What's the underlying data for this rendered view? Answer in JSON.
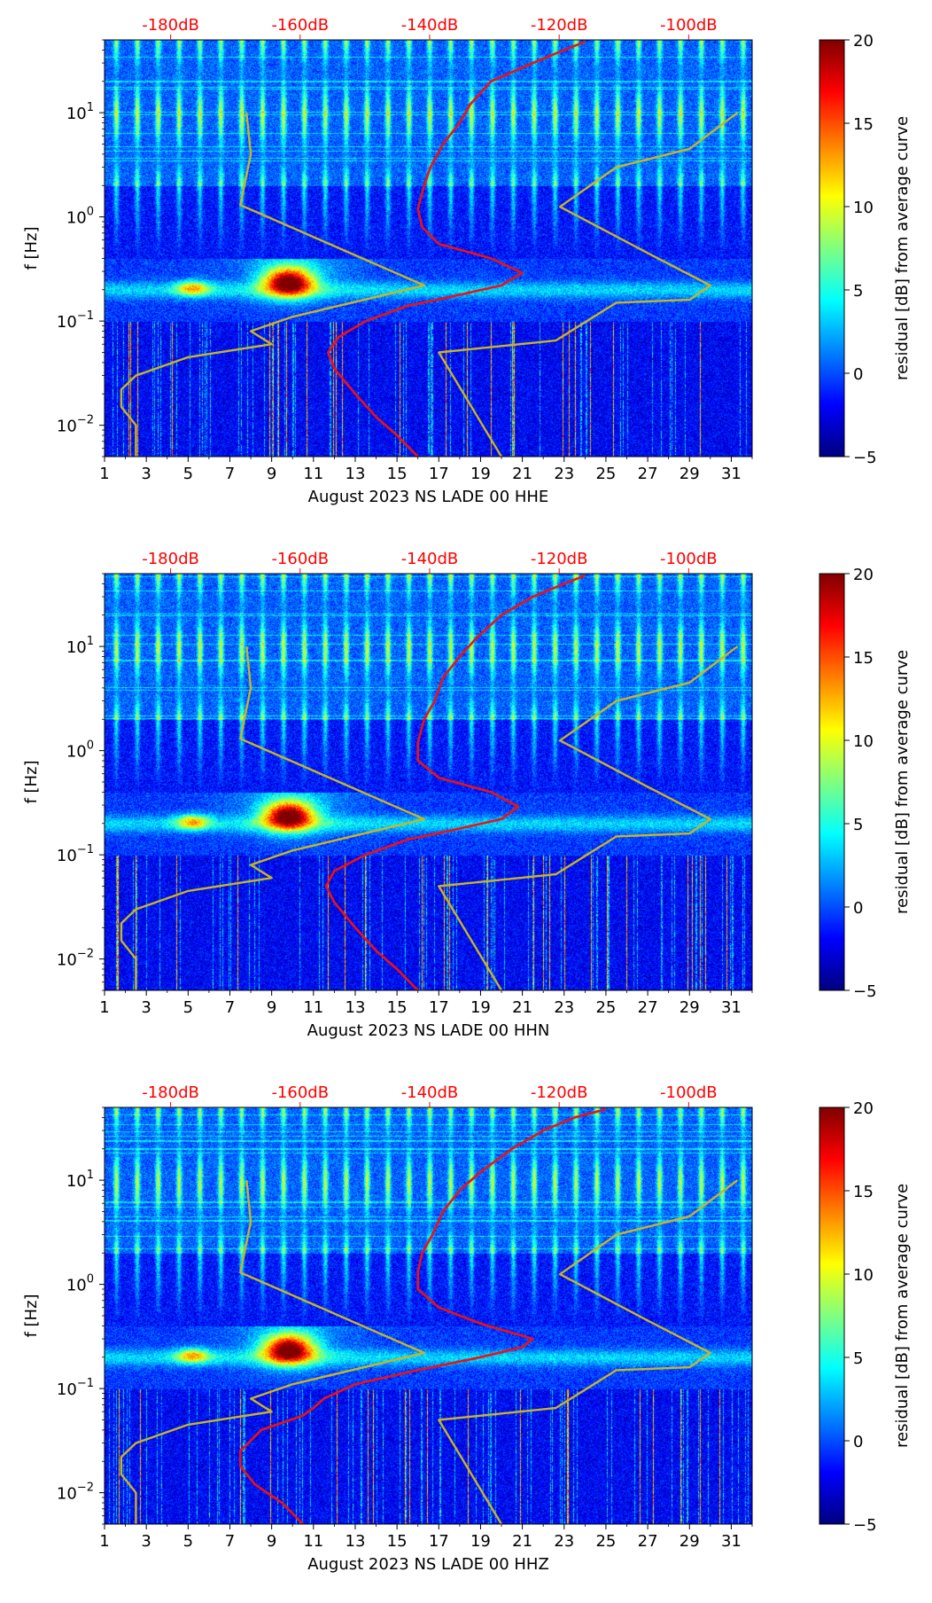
{
  "chart_data": [
    {
      "type": "heatmap",
      "title": "",
      "xlabel": "August 2023 NS LADE 00 HHE",
      "ylabel": "f [Hz]",
      "x_ticks": [
        "1",
        "3",
        "5",
        "7",
        "9",
        "11",
        "13",
        "15",
        "17",
        "19",
        "21",
        "23",
        "25",
        "27",
        "29",
        "31"
      ],
      "x_range": [
        1,
        32
      ],
      "y_scale": "log",
      "y_range": [
        0.005,
        50
      ],
      "y_ticks": [
        {
          "value": 0.01,
          "base": "10",
          "exp": "−2"
        },
        {
          "value": 0.1,
          "base": "10",
          "exp": "−1"
        },
        {
          "value": 1,
          "base": "10",
          "exp": "0"
        },
        {
          "value": 10,
          "base": "10",
          "exp": "1"
        }
      ],
      "top_axis_labels": [
        "-180dB",
        "-160dB",
        "-140dB",
        "-120dB",
        "-100dB"
      ],
      "top_axis_color": "#ff0000",
      "colorbar": {
        "label": "residual [dB] from average curve",
        "range": [
          -5,
          20
        ],
        "ticks": [
          "−5",
          "0",
          "5",
          "10",
          "15",
          "20"
        ],
        "colormap": "jet"
      },
      "series": [
        {
          "color": "#ee1111",
          "points": [
            [
              16.0,
              0.005
            ],
            [
              15.0,
              0.008
            ],
            [
              14.0,
              0.012
            ],
            [
              13.0,
              0.02
            ],
            [
              12.0,
              0.035
            ],
            [
              11.7,
              0.05
            ],
            [
              12.2,
              0.07
            ],
            [
              13.5,
              0.1
            ],
            [
              15.5,
              0.14
            ],
            [
              17.5,
              0.17
            ],
            [
              20.0,
              0.22
            ],
            [
              21.0,
              0.29
            ],
            [
              19.5,
              0.4
            ],
            [
              17.0,
              0.55
            ],
            [
              16.2,
              0.8
            ],
            [
              16.0,
              1.2
            ],
            [
              16.3,
              2.0
            ],
            [
              16.6,
              3.0
            ],
            [
              17.2,
              5.0
            ],
            [
              18.0,
              8.0
            ],
            [
              18.5,
              12.0
            ],
            [
              19.5,
              20.0
            ],
            [
              21.5,
              30.0
            ],
            [
              23.0,
              40.0
            ],
            [
              24.0,
              48.0
            ]
          ]
        },
        {
          "color": "#c8b428",
          "points": [
            [
              2.5,
              0.005
            ],
            [
              2.5,
              0.01
            ],
            [
              1.8,
              0.015
            ],
            [
              1.8,
              0.022
            ],
            [
              2.5,
              0.03
            ],
            [
              5.0,
              0.045
            ],
            [
              9.0,
              0.06
            ],
            [
              8.0,
              0.08
            ],
            [
              10.0,
              0.11
            ],
            [
              16.3,
              0.22
            ],
            [
              14.0,
              0.35
            ],
            [
              7.5,
              1.3
            ],
            [
              8.0,
              4.0
            ],
            [
              7.8,
              10.0
            ]
          ]
        },
        {
          "color": "#c8b428",
          "points": [
            [
              20.0,
              0.005
            ],
            [
              17.0,
              0.05
            ],
            [
              22.6,
              0.065
            ],
            [
              25.5,
              0.15
            ],
            [
              29.0,
              0.16
            ],
            [
              30.0,
              0.22
            ],
            [
              27.0,
              0.45
            ],
            [
              22.8,
              1.25
            ],
            [
              25.5,
              3.0
            ],
            [
              29.0,
              4.5
            ],
            [
              31.3,
              10.0
            ]
          ]
        }
      ]
    },
    {
      "type": "heatmap",
      "title": "",
      "xlabel": "August 2023 NS LADE 00 HHN",
      "ylabel": "f [Hz]",
      "x_ticks": [
        "1",
        "3",
        "5",
        "7",
        "9",
        "11",
        "13",
        "15",
        "17",
        "19",
        "21",
        "23",
        "25",
        "27",
        "29",
        "31"
      ],
      "x_range": [
        1,
        32
      ],
      "y_scale": "log",
      "y_range": [
        0.005,
        50
      ],
      "y_ticks": [
        {
          "value": 0.01,
          "base": "10",
          "exp": "−2"
        },
        {
          "value": 0.1,
          "base": "10",
          "exp": "−1"
        },
        {
          "value": 1,
          "base": "10",
          "exp": "0"
        },
        {
          "value": 10,
          "base": "10",
          "exp": "1"
        }
      ],
      "top_axis_labels": [
        "-180dB",
        "-160dB",
        "-140dB",
        "-120dB",
        "-100dB"
      ],
      "top_axis_color": "#ff0000",
      "colorbar": {
        "label": "residual [dB] from average curve",
        "range": [
          -5,
          20
        ],
        "ticks": [
          "−5",
          "0",
          "5",
          "10",
          "15",
          "20"
        ],
        "colormap": "jet"
      },
      "series": [
        {
          "color": "#ee1111",
          "points": [
            [
              16.0,
              0.005
            ],
            [
              15.0,
              0.008
            ],
            [
              14.0,
              0.012
            ],
            [
              13.0,
              0.02
            ],
            [
              12.0,
              0.035
            ],
            [
              11.6,
              0.05
            ],
            [
              12.0,
              0.07
            ],
            [
              13.5,
              0.1
            ],
            [
              15.5,
              0.14
            ],
            [
              17.5,
              0.17
            ],
            [
              20.0,
              0.22
            ],
            [
              20.8,
              0.29
            ],
            [
              19.5,
              0.4
            ],
            [
              17.0,
              0.55
            ],
            [
              16.0,
              0.8
            ],
            [
              16.0,
              1.2
            ],
            [
              16.3,
              2.0
            ],
            [
              16.8,
              3.0
            ],
            [
              17.2,
              5.0
            ],
            [
              18.0,
              8.0
            ],
            [
              18.8,
              12.0
            ],
            [
              20.0,
              20.0
            ],
            [
              21.5,
              30.0
            ],
            [
              23.0,
              40.0
            ],
            [
              24.0,
              48.0
            ]
          ]
        },
        {
          "color": "#c8b428",
          "points": [
            [
              2.5,
              0.005
            ],
            [
              2.5,
              0.01
            ],
            [
              1.8,
              0.015
            ],
            [
              1.8,
              0.022
            ],
            [
              2.5,
              0.03
            ],
            [
              5.0,
              0.045
            ],
            [
              9.0,
              0.06
            ],
            [
              8.0,
              0.08
            ],
            [
              10.0,
              0.11
            ],
            [
              16.3,
              0.22
            ],
            [
              14.0,
              0.35
            ],
            [
              7.5,
              1.3
            ],
            [
              8.0,
              4.0
            ],
            [
              7.8,
              10.0
            ]
          ]
        },
        {
          "color": "#c8b428",
          "points": [
            [
              20.0,
              0.005
            ],
            [
              17.0,
              0.05
            ],
            [
              22.6,
              0.065
            ],
            [
              25.5,
              0.15
            ],
            [
              29.0,
              0.16
            ],
            [
              30.0,
              0.22
            ],
            [
              27.0,
              0.45
            ],
            [
              22.8,
              1.25
            ],
            [
              25.5,
              3.0
            ],
            [
              29.0,
              4.5
            ],
            [
              31.3,
              10.0
            ]
          ]
        }
      ]
    },
    {
      "type": "heatmap",
      "title": "",
      "xlabel": "August 2023 NS LADE 00 HHZ",
      "ylabel": "f [Hz]",
      "x_ticks": [
        "1",
        "3",
        "5",
        "7",
        "9",
        "11",
        "13",
        "15",
        "17",
        "19",
        "21",
        "23",
        "25",
        "27",
        "29",
        "31"
      ],
      "x_range": [
        1,
        32
      ],
      "y_scale": "log",
      "y_range": [
        0.005,
        50
      ],
      "y_ticks": [
        {
          "value": 0.01,
          "base": "10",
          "exp": "−2"
        },
        {
          "value": 0.1,
          "base": "10",
          "exp": "−1"
        },
        {
          "value": 1,
          "base": "10",
          "exp": "0"
        },
        {
          "value": 10,
          "base": "10",
          "exp": "1"
        }
      ],
      "top_axis_labels": [
        "-180dB",
        "-160dB",
        "-140dB",
        "-120dB",
        "-100dB"
      ],
      "top_axis_color": "#ff0000",
      "colorbar": {
        "label": "residual [dB] from average curve",
        "range": [
          -5,
          20
        ],
        "ticks": [
          "−5",
          "0",
          "5",
          "10",
          "15",
          "20"
        ],
        "colormap": "jet"
      },
      "series": [
        {
          "color": "#ee1111",
          "points": [
            [
              10.5,
              0.005
            ],
            [
              9.5,
              0.008
            ],
            [
              8.2,
              0.012
            ],
            [
              7.5,
              0.018
            ],
            [
              7.5,
              0.025
            ],
            [
              8.5,
              0.04
            ],
            [
              10.5,
              0.055
            ],
            [
              11.0,
              0.065
            ],
            [
              11.5,
              0.08
            ],
            [
              13.0,
              0.11
            ],
            [
              16.0,
              0.15
            ],
            [
              19.0,
              0.2
            ],
            [
              21.0,
              0.25
            ],
            [
              21.5,
              0.3
            ],
            [
              19.0,
              0.42
            ],
            [
              17.0,
              0.6
            ],
            [
              16.0,
              0.9
            ],
            [
              16.0,
              1.3
            ],
            [
              16.2,
              2.0
            ],
            [
              16.7,
              3.0
            ],
            [
              17.2,
              5.0
            ],
            [
              18.0,
              8.0
            ],
            [
              19.0,
              12.0
            ],
            [
              20.5,
              20.0
            ],
            [
              22.0,
              30.0
            ],
            [
              23.5,
              40.0
            ],
            [
              25.0,
              48.0
            ]
          ]
        },
        {
          "color": "#c8b428",
          "points": [
            [
              2.5,
              0.005
            ],
            [
              2.5,
              0.01
            ],
            [
              1.8,
              0.015
            ],
            [
              1.8,
              0.022
            ],
            [
              2.5,
              0.03
            ],
            [
              5.0,
              0.045
            ],
            [
              9.0,
              0.06
            ],
            [
              8.0,
              0.08
            ],
            [
              10.0,
              0.11
            ],
            [
              16.3,
              0.22
            ],
            [
              14.0,
              0.35
            ],
            [
              7.5,
              1.3
            ],
            [
              8.0,
              4.0
            ],
            [
              7.8,
              10.0
            ]
          ]
        },
        {
          "color": "#c8b428",
          "points": [
            [
              20.0,
              0.005
            ],
            [
              17.0,
              0.05
            ],
            [
              22.6,
              0.065
            ],
            [
              25.5,
              0.15
            ],
            [
              29.0,
              0.16
            ],
            [
              30.0,
              0.22
            ],
            [
              27.0,
              0.45
            ],
            [
              22.8,
              1.25
            ],
            [
              25.5,
              3.0
            ],
            [
              29.0,
              4.5
            ],
            [
              31.3,
              10.0
            ]
          ]
        }
      ]
    }
  ]
}
